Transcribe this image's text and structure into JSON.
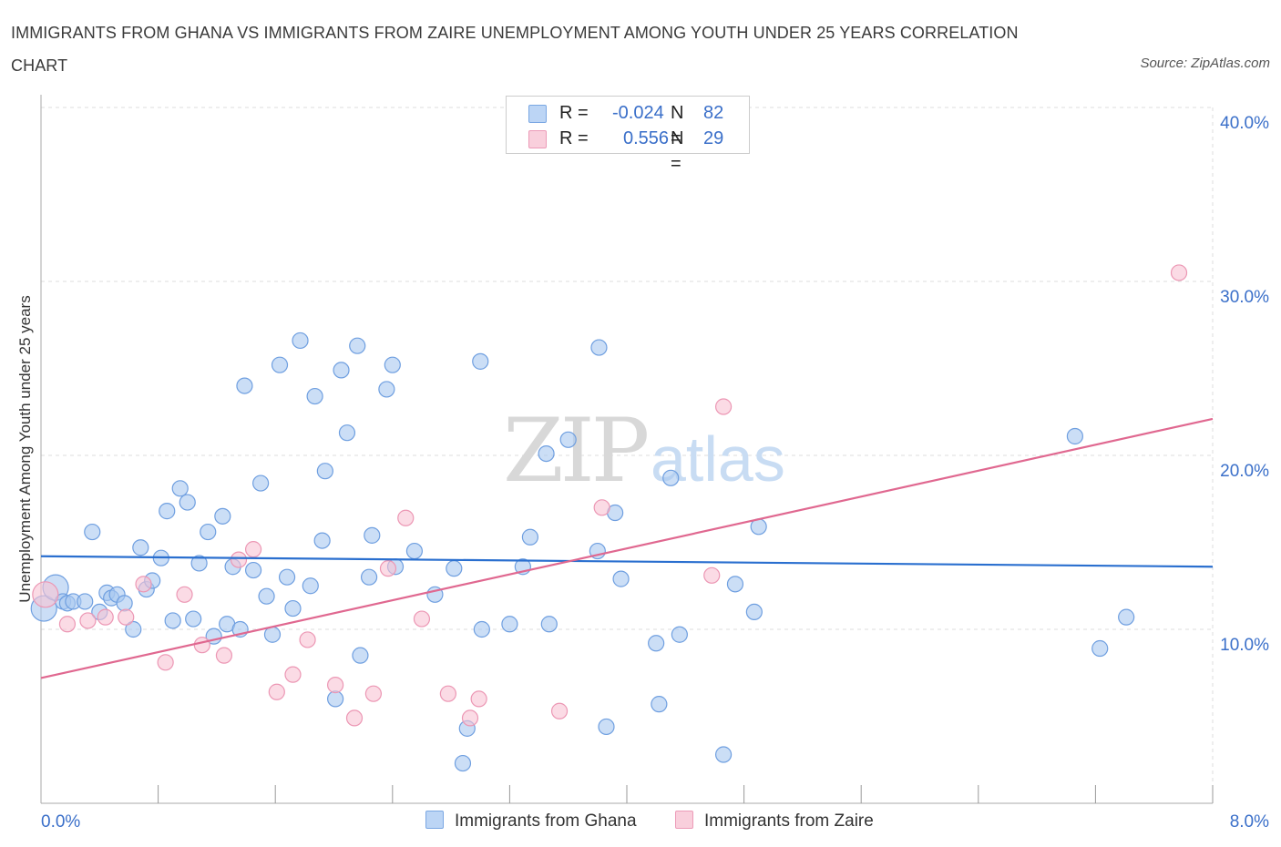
{
  "title": "IMMIGRANTS FROM GHANA VS IMMIGRANTS FROM ZAIRE UNEMPLOYMENT AMONG YOUTH UNDER 25 YEARS CORRELATION CHART",
  "source": "Source: ZipAtlas.com",
  "watermark": {
    "zip": "ZIP",
    "atlas": "atlas"
  },
  "legend": {
    "rows": [
      {
        "r_label": "R = ",
        "r_value": "-0.024",
        "n_label": "N = ",
        "n_value": "82"
      },
      {
        "r_label": "R = ",
        "r_value": "0.556",
        "n_label": "N = ",
        "n_value": "29"
      }
    ]
  },
  "bottom_legend": [
    "Immigrants from Ghana",
    "Immigrants from Zaire"
  ],
  "colors": {
    "ghana_fill": "#a9c8f0",
    "ghana_stroke": "#6f9fe0",
    "ghana_line": "#2a6fcf",
    "zaire_fill": "#f8c3d3",
    "zaire_stroke": "#ec97b4",
    "zaire_line": "#e06890",
    "tick_label": "#3a6fc9",
    "grid": "#dddddd"
  },
  "chart_data": {
    "type": "scatter",
    "title": "IMMIGRANTS FROM GHANA VS IMMIGRANTS FROM ZAIRE UNEMPLOYMENT AMONG YOUTH UNDER 25 YEARS CORRELATION CHART",
    "xlabel": "",
    "ylabel": "Unemployment Among Youth under 25 years",
    "xlim": [
      0,
      8
    ],
    "ylim": [
      0,
      40
    ],
    "x_tick_labels": [
      "0.0%",
      "8.0%"
    ],
    "y_ticks": [
      10,
      20,
      30,
      40
    ],
    "y_tick_labels": [
      "10.0%",
      "20.0%",
      "30.0%",
      "40.0%"
    ],
    "grid": true,
    "legend_position": "top-center",
    "series": [
      {
        "name": "Immigrants from Ghana",
        "r": -0.024,
        "n": 82,
        "trend": {
          "x": [
            0,
            8
          ],
          "y": [
            14.2,
            13.6
          ]
        },
        "points": [
          {
            "x": 0.02,
            "y": 11.2,
            "big": true
          },
          {
            "x": 0.1,
            "y": 12.4,
            "big": true
          },
          {
            "x": 0.15,
            "y": 11.6
          },
          {
            "x": 0.18,
            "y": 11.5
          },
          {
            "x": 0.22,
            "y": 11.6
          },
          {
            "x": 0.3,
            "y": 11.6
          },
          {
            "x": 0.35,
            "y": 15.6
          },
          {
            "x": 0.4,
            "y": 11.0
          },
          {
            "x": 0.45,
            "y": 12.1
          },
          {
            "x": 0.48,
            "y": 11.8
          },
          {
            "x": 0.52,
            "y": 12.0
          },
          {
            "x": 0.57,
            "y": 11.5
          },
          {
            "x": 0.63,
            "y": 10.0
          },
          {
            "x": 0.68,
            "y": 14.7
          },
          {
            "x": 0.72,
            "y": 12.3
          },
          {
            "x": 0.76,
            "y": 12.8
          },
          {
            "x": 0.82,
            "y": 14.1
          },
          {
            "x": 0.86,
            "y": 16.8
          },
          {
            "x": 0.9,
            "y": 10.5
          },
          {
            "x": 0.95,
            "y": 18.1
          },
          {
            "x": 1.0,
            "y": 17.3
          },
          {
            "x": 1.04,
            "y": 10.6
          },
          {
            "x": 1.08,
            "y": 13.8
          },
          {
            "x": 1.14,
            "y": 15.6
          },
          {
            "x": 1.18,
            "y": 9.6
          },
          {
            "x": 1.24,
            "y": 16.5
          },
          {
            "x": 1.27,
            "y": 10.3
          },
          {
            "x": 1.31,
            "y": 13.6
          },
          {
            "x": 1.36,
            "y": 10.0
          },
          {
            "x": 1.39,
            "y": 24.0
          },
          {
            "x": 1.45,
            "y": 13.4
          },
          {
            "x": 1.5,
            "y": 18.4
          },
          {
            "x": 1.54,
            "y": 11.9
          },
          {
            "x": 1.58,
            "y": 9.7
          },
          {
            "x": 1.63,
            "y": 25.2
          },
          {
            "x": 1.68,
            "y": 13.0
          },
          {
            "x": 1.72,
            "y": 11.2
          },
          {
            "x": 1.77,
            "y": 26.6
          },
          {
            "x": 1.84,
            "y": 12.5
          },
          {
            "x": 1.87,
            "y": 23.4
          },
          {
            "x": 1.92,
            "y": 15.1
          },
          {
            "x": 1.94,
            "y": 19.1
          },
          {
            "x": 2.01,
            "y": 6.0
          },
          {
            "x": 2.05,
            "y": 24.9
          },
          {
            "x": 2.09,
            "y": 21.3
          },
          {
            "x": 2.16,
            "y": 26.3
          },
          {
            "x": 2.18,
            "y": 8.5
          },
          {
            "x": 2.24,
            "y": 13.0
          },
          {
            "x": 2.26,
            "y": 15.4
          },
          {
            "x": 2.36,
            "y": 23.8
          },
          {
            "x": 2.4,
            "y": 25.2
          },
          {
            "x": 2.42,
            "y": 13.6
          },
          {
            "x": 2.55,
            "y": 14.5
          },
          {
            "x": 2.69,
            "y": 12.0
          },
          {
            "x": 2.82,
            "y": 13.5
          },
          {
            "x": 2.91,
            "y": 4.3
          },
          {
            "x": 2.88,
            "y": 2.3
          },
          {
            "x": 3.0,
            "y": 25.4
          },
          {
            "x": 3.01,
            "y": 10.0
          },
          {
            "x": 3.2,
            "y": 10.3
          },
          {
            "x": 3.29,
            "y": 13.6
          },
          {
            "x": 3.34,
            "y": 15.3
          },
          {
            "x": 3.45,
            "y": 20.1
          },
          {
            "x": 3.47,
            "y": 10.3
          },
          {
            "x": 3.6,
            "y": 20.9
          },
          {
            "x": 3.8,
            "y": 14.5
          },
          {
            "x": 3.81,
            "y": 26.2
          },
          {
            "x": 3.86,
            "y": 4.4
          },
          {
            "x": 3.92,
            "y": 16.7
          },
          {
            "x": 3.96,
            "y": 12.9
          },
          {
            "x": 4.2,
            "y": 9.2
          },
          {
            "x": 4.22,
            "y": 5.7
          },
          {
            "x": 4.3,
            "y": 18.7
          },
          {
            "x": 4.36,
            "y": 9.7
          },
          {
            "x": 4.66,
            "y": 2.8
          },
          {
            "x": 4.74,
            "y": 12.6
          },
          {
            "x": 4.87,
            "y": 11.0
          },
          {
            "x": 4.9,
            "y": 15.9
          },
          {
            "x": 7.06,
            "y": 21.1
          },
          {
            "x": 7.23,
            "y": 8.9
          },
          {
            "x": 7.41,
            "y": 10.7
          }
        ]
      },
      {
        "name": "Immigrants from Zaire",
        "r": 0.556,
        "n": 29,
        "trend": {
          "x": [
            0,
            8
          ],
          "y": [
            7.2,
            22.1
          ]
        },
        "points": [
          {
            "x": 0.03,
            "y": 12.0,
            "big": true
          },
          {
            "x": 0.18,
            "y": 10.3
          },
          {
            "x": 0.32,
            "y": 10.5
          },
          {
            "x": 0.44,
            "y": 10.7
          },
          {
            "x": 0.58,
            "y": 10.7
          },
          {
            "x": 0.7,
            "y": 12.6
          },
          {
            "x": 0.85,
            "y": 8.1
          },
          {
            "x": 0.98,
            "y": 12.0
          },
          {
            "x": 1.1,
            "y": 9.1
          },
          {
            "x": 1.25,
            "y": 8.5
          },
          {
            "x": 1.35,
            "y": 14.0
          },
          {
            "x": 1.45,
            "y": 14.6
          },
          {
            "x": 1.61,
            "y": 6.4
          },
          {
            "x": 1.72,
            "y": 7.4
          },
          {
            "x": 1.82,
            "y": 9.4
          },
          {
            "x": 2.01,
            "y": 6.8
          },
          {
            "x": 2.14,
            "y": 4.9
          },
          {
            "x": 2.27,
            "y": 6.3
          },
          {
            "x": 2.37,
            "y": 13.5
          },
          {
            "x": 2.49,
            "y": 16.4
          },
          {
            "x": 2.6,
            "y": 10.6
          },
          {
            "x": 2.78,
            "y": 6.3
          },
          {
            "x": 2.93,
            "y": 4.9
          },
          {
            "x": 2.99,
            "y": 6.0
          },
          {
            "x": 3.54,
            "y": 5.3
          },
          {
            "x": 3.83,
            "y": 17.0
          },
          {
            "x": 4.58,
            "y": 13.1
          },
          {
            "x": 4.66,
            "y": 22.8
          },
          {
            "x": 7.77,
            "y": 30.5
          }
        ]
      }
    ]
  }
}
